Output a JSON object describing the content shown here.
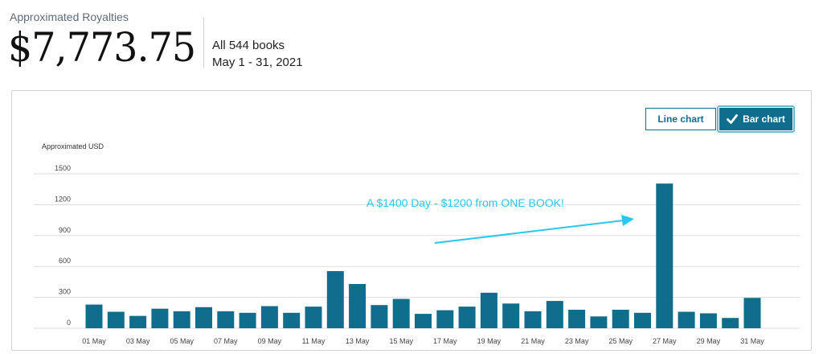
{
  "header": {
    "label": "Approximated Royalties",
    "amount": "$7,773.75",
    "books": "All 544 books",
    "date_range": "May 1 - 31, 2021"
  },
  "toggle": {
    "line_label": "Line chart",
    "bar_label": "Bar chart",
    "selected": "bar"
  },
  "colors": {
    "bar": "#0f6e8c",
    "annotation": "#29c7ef",
    "grid": "#d9dde1"
  },
  "annotation": {
    "text": "A $1400 Day - $1200 from ONE BOOK!"
  },
  "chart_data": {
    "type": "bar",
    "ylabel": "Approximated USD",
    "ylim": [
      0,
      1500
    ],
    "yticks": [
      0,
      300,
      600,
      900,
      1200,
      1500
    ],
    "categories": [
      "01 May",
      "02 May",
      "03 May",
      "04 May",
      "05 May",
      "06 May",
      "07 May",
      "08 May",
      "09 May",
      "10 May",
      "11 May",
      "12 May",
      "13 May",
      "14 May",
      "15 May",
      "16 May",
      "17 May",
      "18 May",
      "19 May",
      "20 May",
      "21 May",
      "22 May",
      "23 May",
      "24 May",
      "25 May",
      "26 May",
      "27 May",
      "28 May",
      "29 May",
      "30 May",
      "31 May"
    ],
    "x_tick_labels": [
      "01 May",
      "03 May",
      "05 May",
      "07 May",
      "09 May",
      "11 May",
      "13 May",
      "15 May",
      "17 May",
      "19 May",
      "21 May",
      "23 May",
      "25 May",
      "27 May",
      "29 May",
      "31 May"
    ],
    "values": [
      230,
      160,
      120,
      190,
      165,
      205,
      165,
      150,
      215,
      150,
      210,
      555,
      430,
      225,
      285,
      140,
      175,
      210,
      345,
      240,
      165,
      265,
      180,
      115,
      180,
      150,
      1405,
      160,
      145,
      100,
      295
    ],
    "grid": true,
    "legend": "none"
  }
}
